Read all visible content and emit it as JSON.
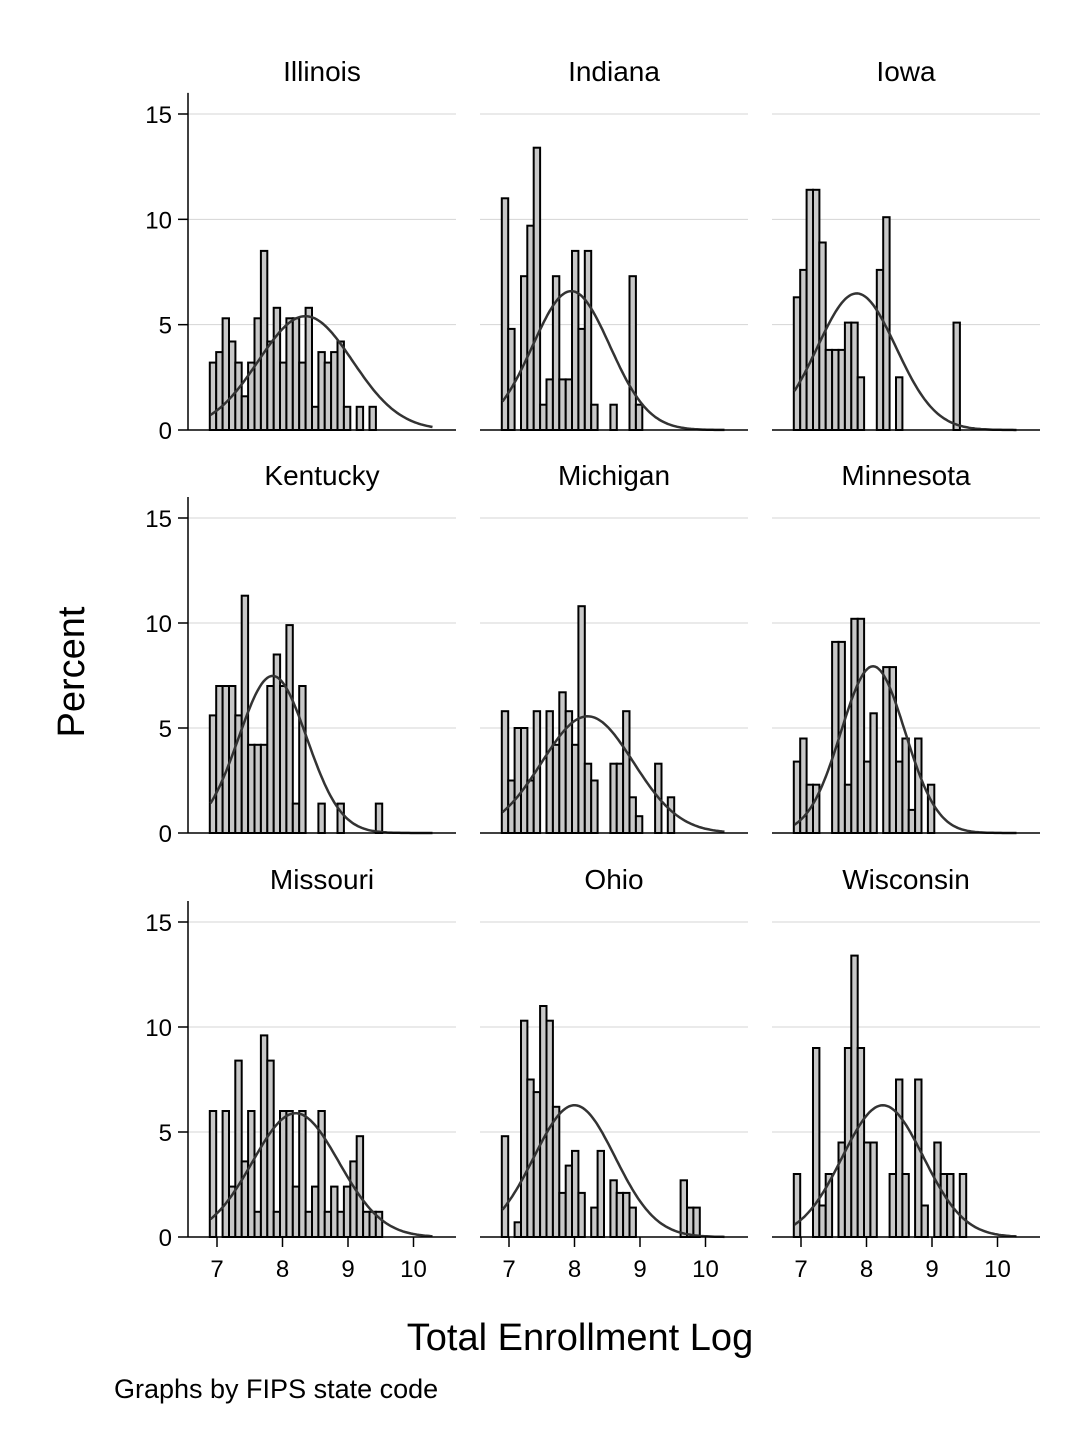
{
  "figure": {
    "ylabel": "Percent",
    "xlabel": "Total Enrollment Log",
    "note": "Graphs by FIPS state code"
  },
  "chart_data": {
    "type": "bar",
    "subtype": "histogram-by-panel",
    "title": "",
    "xlabel": "Total Enrollment Log",
    "ylabel": "Percent",
    "xlim": [
      6.7,
      10.7
    ],
    "ylim": [
      0,
      15.5
    ],
    "xticks": [
      7,
      8,
      9,
      10
    ],
    "yticks": [
      0,
      5,
      10,
      15
    ],
    "grid": true,
    "bin_width": 0.0975,
    "bin_start": 6.89,
    "normal_overlay": true,
    "panels": [
      {
        "name": "Illinois",
        "values": [
          3.2,
          3.7,
          5.3,
          4.2,
          3.2,
          1.6,
          3.2,
          5.3,
          8.5,
          4.2,
          5.8,
          3.2,
          5.3,
          5.3,
          3.2,
          5.8,
          1.1,
          3.7,
          3.2,
          3.7,
          4.2,
          1.1,
          0,
          1.1,
          0,
          1.1
        ],
        "mean": 8.35,
        "sd": 0.72
      },
      {
        "name": "Indiana",
        "values": [
          11.0,
          4.8,
          0,
          7.3,
          9.7,
          13.4,
          1.2,
          2.4,
          7.3,
          2.4,
          2.4,
          8.5,
          4.8,
          8.5,
          1.2,
          0,
          0,
          1.2,
          0,
          0,
          7.3,
          1.2
        ],
        "mean": 7.95,
        "sd": 0.59
      },
      {
        "name": "Iowa",
        "values": [
          6.3,
          7.6,
          11.4,
          11.4,
          8.9,
          3.8,
          3.8,
          3.8,
          5.1,
          5.1,
          2.5,
          0,
          0,
          7.6,
          10.1,
          0,
          2.5,
          0,
          0,
          0,
          0,
          0,
          0,
          0,
          0,
          5.1
        ],
        "mean": 7.85,
        "sd": 0.6
      },
      {
        "name": "Kentucky",
        "values": [
          5.6,
          7.0,
          7.0,
          7.0,
          5.6,
          11.3,
          4.2,
          4.2,
          4.2,
          7.0,
          8.5,
          7.0,
          9.9,
          1.4,
          7.0,
          0,
          0,
          1.4,
          0,
          0,
          1.4,
          0,
          0,
          0,
          0,
          0,
          1.4
        ],
        "mean": 7.85,
        "sd": 0.52
      },
      {
        "name": "Michigan",
        "values": [
          5.8,
          2.5,
          5.0,
          5.0,
          2.5,
          5.8,
          0,
          5.8,
          4.2,
          6.7,
          5.8,
          4.2,
          10.8,
          3.3,
          2.5,
          0,
          0,
          3.3,
          3.3,
          5.8,
          1.7,
          0.8,
          0,
          0,
          3.3,
          0,
          1.7
        ],
        "mean": 8.2,
        "sd": 0.7
      },
      {
        "name": "Minnesota",
        "values": [
          3.4,
          4.5,
          2.3,
          2.3,
          0,
          0,
          9.1,
          9.1,
          2.3,
          10.2,
          10.2,
          3.4,
          5.7,
          0,
          7.9,
          7.9,
          3.4,
          4.5,
          1.1,
          4.5,
          0,
          2.3
        ],
        "mean": 8.1,
        "sd": 0.49
      },
      {
        "name": "Missouri",
        "values": [
          6.0,
          0,
          6.0,
          2.4,
          8.4,
          3.6,
          6.0,
          1.2,
          9.6,
          8.4,
          1.2,
          6.0,
          6.0,
          2.4,
          6.0,
          1.2,
          2.4,
          6.0,
          1.2,
          2.4,
          1.2,
          2.4,
          3.6,
          4.8,
          1.2,
          1.2,
          1.2
        ],
        "mean": 8.2,
        "sd": 0.66
      },
      {
        "name": "Ohio",
        "values": [
          4.8,
          0,
          0.7,
          10.3,
          7.5,
          6.9,
          11.0,
          10.3,
          6.2,
          2.1,
          3.4,
          4.1,
          2.1,
          0,
          1.4,
          4.1,
          0,
          2.7,
          2.1,
          2.1,
          1.4,
          0,
          0,
          0,
          0,
          0,
          0,
          0,
          2.7,
          1.4,
          1.4
        ],
        "mean": 8.0,
        "sd": 0.62
      },
      {
        "name": "Wisconsin",
        "values": [
          3.0,
          0,
          0,
          9.0,
          1.5,
          3.0,
          0,
          4.5,
          9.0,
          13.4,
          9.0,
          4.5,
          4.5,
          0,
          0,
          3.0,
          7.5,
          3.0,
          0,
          7.5,
          1.5,
          0,
          4.5,
          3.0,
          3.0,
          0,
          3.0
        ],
        "mean": 8.25,
        "sd": 0.62
      }
    ]
  }
}
